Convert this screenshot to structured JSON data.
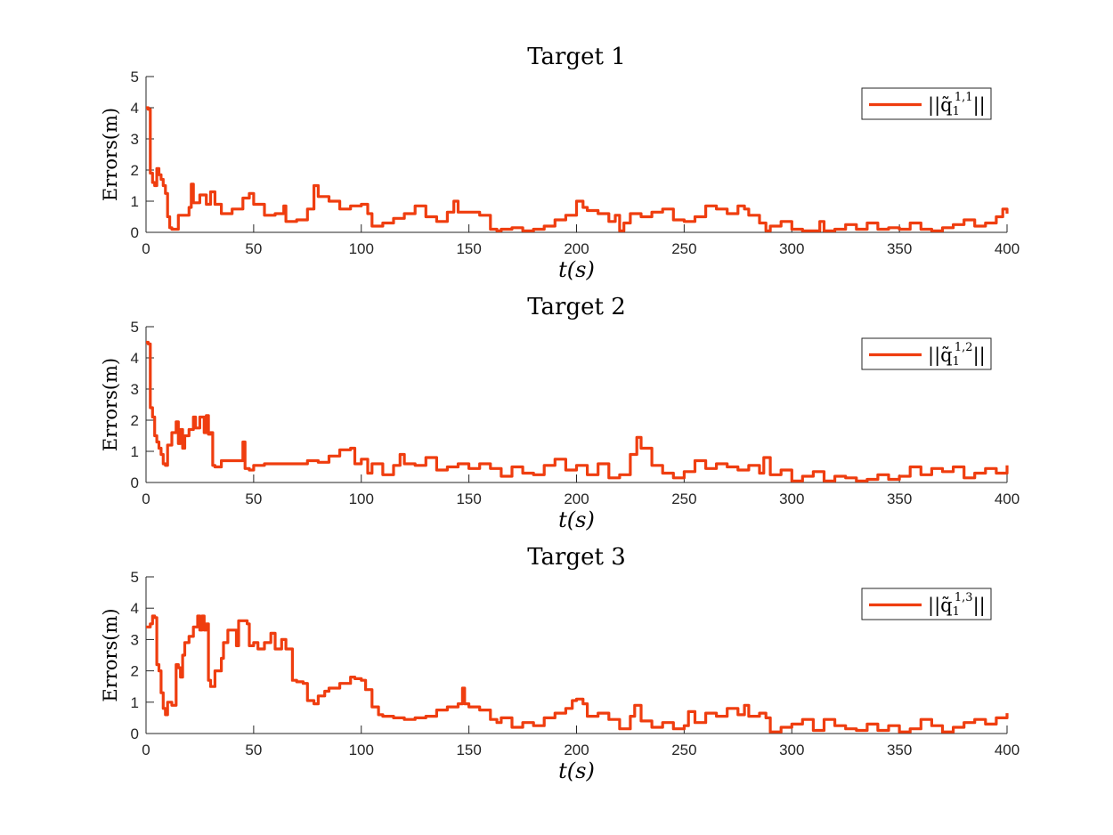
{
  "chart_data": [
    {
      "type": "line",
      "title": "Target 1",
      "xlabel": "t(s)",
      "ylabel": "Errors(m)",
      "xlim": [
        0,
        400
      ],
      "ylim": [
        0,
        5
      ],
      "xticks": [
        0,
        50,
        100,
        150,
        200,
        250,
        300,
        350,
        400
      ],
      "yticks": [
        0,
        1,
        2,
        3,
        4,
        5
      ],
      "legend": {
        "placement": "top-right",
        "text": "||q̃",
        "sub": "1",
        "sup": "1,1",
        "close": "||"
      },
      "series": [
        {
          "name": "||q̃_1^{1,1}||",
          "color": "#ef3d0f",
          "x": [
            0,
            1,
            2,
            3,
            4,
            5,
            6,
            7,
            8,
            9,
            10,
            11,
            12,
            15,
            20,
            21,
            22,
            25,
            28,
            30,
            32,
            35,
            40,
            45,
            48,
            50,
            55,
            60,
            64,
            65,
            70,
            75,
            78,
            80,
            85,
            90,
            95,
            100,
            103,
            105,
            110,
            115,
            120,
            125,
            130,
            135,
            140,
            143,
            145,
            150,
            155,
            160,
            163,
            165,
            170,
            175,
            180,
            185,
            190,
            195,
            200,
            203,
            205,
            210,
            215,
            218,
            220,
            222,
            225,
            230,
            235,
            240,
            245,
            250,
            255,
            260,
            265,
            270,
            275,
            278,
            280,
            285,
            288,
            290,
            295,
            300,
            305,
            310,
            313,
            315,
            320,
            325,
            330,
            335,
            340,
            345,
            350,
            355,
            360,
            365,
            370,
            375,
            380,
            385,
            390,
            395,
            398,
            400
          ],
          "y": [
            4.0,
            3.95,
            1.9,
            1.6,
            1.5,
            2.05,
            1.85,
            1.7,
            1.5,
            1.25,
            0.5,
            0.15,
            0.1,
            0.55,
            0.8,
            1.55,
            0.95,
            1.2,
            0.9,
            1.3,
            0.9,
            0.6,
            0.75,
            1.1,
            1.25,
            0.9,
            0.55,
            0.6,
            0.85,
            0.35,
            0.4,
            0.75,
            1.5,
            1.15,
            1.0,
            0.75,
            0.85,
            0.9,
            0.6,
            0.2,
            0.3,
            0.45,
            0.6,
            0.85,
            0.5,
            0.35,
            0.65,
            1.0,
            0.65,
            0.65,
            0.55,
            0.1,
            0.05,
            0.1,
            0.15,
            0.05,
            0.1,
            0.2,
            0.4,
            0.55,
            1.0,
            0.8,
            0.7,
            0.6,
            0.35,
            0.55,
            0.05,
            0.3,
            0.6,
            0.5,
            0.65,
            0.75,
            0.4,
            0.35,
            0.5,
            0.85,
            0.75,
            0.6,
            0.85,
            0.75,
            0.55,
            0.3,
            0.05,
            0.2,
            0.35,
            0.1,
            0.05,
            0.05,
            0.35,
            0.05,
            0.1,
            0.25,
            0.1,
            0.3,
            0.1,
            0.15,
            0.1,
            0.3,
            0.1,
            0.05,
            0.15,
            0.25,
            0.4,
            0.2,
            0.3,
            0.5,
            0.75,
            0.6
          ]
        }
      ]
    },
    {
      "type": "line",
      "title": "Target 2",
      "xlabel": "t(s)",
      "ylabel": "Errors(m)",
      "xlim": [
        0,
        400
      ],
      "ylim": [
        0,
        5
      ],
      "xticks": [
        0,
        50,
        100,
        150,
        200,
        250,
        300,
        350,
        400
      ],
      "yticks": [
        0,
        1,
        2,
        3,
        4,
        5
      ],
      "legend": {
        "placement": "top-right",
        "text": "||q̃",
        "sub": "1",
        "sup": "1,2",
        "close": "||"
      },
      "series": [
        {
          "name": "||q̃_1^{1,2}||",
          "color": "#ef3d0f",
          "x": [
            0,
            1,
            2,
            3,
            4,
            5,
            6,
            7,
            8,
            9,
            10,
            12,
            14,
            15,
            16,
            17,
            18,
            20,
            22,
            23,
            25,
            27,
            28,
            29,
            30,
            31,
            32,
            35,
            40,
            45,
            46,
            48,
            50,
            55,
            60,
            65,
            70,
            75,
            80,
            85,
            90,
            95,
            97,
            100,
            103,
            105,
            110,
            115,
            118,
            120,
            125,
            130,
            135,
            140,
            145,
            150,
            155,
            160,
            165,
            170,
            175,
            180,
            185,
            190,
            195,
            200,
            205,
            210,
            215,
            220,
            225,
            228,
            230,
            235,
            240,
            245,
            250,
            255,
            260,
            265,
            270,
            275,
            280,
            285,
            287,
            290,
            295,
            300,
            305,
            310,
            315,
            320,
            325,
            330,
            335,
            340,
            345,
            350,
            355,
            360,
            365,
            370,
            375,
            380,
            385,
            390,
            395,
            400
          ],
          "y": [
            4.5,
            4.45,
            2.4,
            2.1,
            1.5,
            1.3,
            1.1,
            0.9,
            0.6,
            0.55,
            1.2,
            1.6,
            1.95,
            1.25,
            1.7,
            1.1,
            1.5,
            1.7,
            2.1,
            1.75,
            2.1,
            1.6,
            2.15,
            1.55,
            1.6,
            0.55,
            0.5,
            0.7,
            0.7,
            1.3,
            0.45,
            0.4,
            0.55,
            0.6,
            0.6,
            0.6,
            0.6,
            0.7,
            0.65,
            0.85,
            1.05,
            1.1,
            0.6,
            0.75,
            0.3,
            0.6,
            0.25,
            0.55,
            0.9,
            0.6,
            0.55,
            0.8,
            0.4,
            0.5,
            0.6,
            0.45,
            0.6,
            0.45,
            0.2,
            0.5,
            0.3,
            0.25,
            0.55,
            0.75,
            0.4,
            0.55,
            0.25,
            0.6,
            0.15,
            0.25,
            0.9,
            1.45,
            1.1,
            0.55,
            0.3,
            0.15,
            0.35,
            0.7,
            0.45,
            0.6,
            0.5,
            0.4,
            0.55,
            0.3,
            0.8,
            0.25,
            0.4,
            0.05,
            0.2,
            0.35,
            0.05,
            0.2,
            0.15,
            0.05,
            0.1,
            0.25,
            0.1,
            0.2,
            0.5,
            0.25,
            0.45,
            0.35,
            0.5,
            0.15,
            0.3,
            0.45,
            0.3,
            0.55
          ]
        }
      ]
    },
    {
      "type": "line",
      "title": "Target 3",
      "xlabel": "t(s)",
      "ylabel": "Errors(m)",
      "xlim": [
        0,
        400
      ],
      "ylim": [
        0,
        5
      ],
      "xticks": [
        0,
        50,
        100,
        150,
        200,
        250,
        300,
        350,
        400
      ],
      "yticks": [
        0,
        1,
        2,
        3,
        4,
        5
      ],
      "legend": {
        "placement": "top-right",
        "text": "||q̃",
        "sub": "1",
        "sup": "1,3",
        "close": "||"
      },
      "series": [
        {
          "name": "||q̃_1^{1,3}||",
          "color": "#ef3d0f",
          "x": [
            0,
            1,
            2,
            3,
            4,
            5,
            6,
            7,
            8,
            9,
            10,
            12,
            14,
            15,
            16,
            17,
            18,
            20,
            22,
            24,
            25,
            26,
            27,
            28,
            29,
            30,
            32,
            35,
            36,
            38,
            40,
            42,
            43,
            45,
            47,
            48,
            50,
            52,
            55,
            58,
            60,
            63,
            65,
            66,
            68,
            70,
            73,
            75,
            78,
            80,
            83,
            85,
            90,
            95,
            97,
            100,
            102,
            105,
            108,
            110,
            115,
            120,
            125,
            130,
            135,
            140,
            145,
            147,
            148,
            150,
            155,
            160,
            163,
            165,
            170,
            175,
            180,
            185,
            190,
            195,
            198,
            200,
            203,
            205,
            210,
            215,
            220,
            225,
            227,
            230,
            235,
            240,
            245,
            250,
            252,
            255,
            260,
            265,
            270,
            275,
            278,
            280,
            285,
            288,
            290,
            295,
            300,
            305,
            310,
            315,
            320,
            325,
            330,
            335,
            340,
            345,
            350,
            355,
            360,
            365,
            370,
            375,
            380,
            385,
            390,
            395,
            400
          ],
          "y": [
            3.4,
            3.4,
            3.5,
            3.75,
            3.7,
            2.2,
            2.0,
            1.3,
            0.8,
            0.6,
            1.0,
            0.9,
            2.2,
            2.1,
            1.8,
            2.5,
            2.9,
            3.1,
            3.4,
            3.75,
            3.3,
            3.75,
            3.3,
            3.5,
            1.7,
            1.5,
            2.0,
            2.4,
            2.9,
            3.3,
            3.3,
            2.8,
            3.6,
            3.6,
            3.5,
            2.8,
            2.9,
            2.7,
            2.9,
            3.2,
            2.7,
            3.0,
            2.7,
            2.7,
            1.7,
            1.65,
            1.6,
            1.05,
            0.95,
            1.2,
            1.35,
            1.45,
            1.6,
            1.8,
            1.75,
            1.7,
            1.4,
            0.85,
            0.6,
            0.55,
            0.5,
            0.45,
            0.5,
            0.55,
            0.75,
            0.85,
            0.95,
            1.45,
            0.95,
            0.85,
            0.75,
            0.45,
            0.35,
            0.5,
            0.2,
            0.35,
            0.25,
            0.5,
            0.65,
            0.8,
            1.05,
            1.1,
            0.95,
            0.55,
            0.65,
            0.45,
            0.15,
            0.55,
            0.9,
            0.4,
            0.2,
            0.35,
            0.15,
            0.25,
            0.7,
            0.35,
            0.65,
            0.55,
            0.8,
            0.6,
            0.9,
            0.55,
            0.65,
            0.5,
            0.05,
            0.2,
            0.3,
            0.45,
            0.1,
            0.45,
            0.25,
            0.15,
            0.1,
            0.3,
            0.1,
            0.25,
            0.05,
            0.15,
            0.45,
            0.25,
            0.05,
            0.2,
            0.35,
            0.45,
            0.3,
            0.5,
            0.65
          ]
        }
      ]
    }
  ]
}
